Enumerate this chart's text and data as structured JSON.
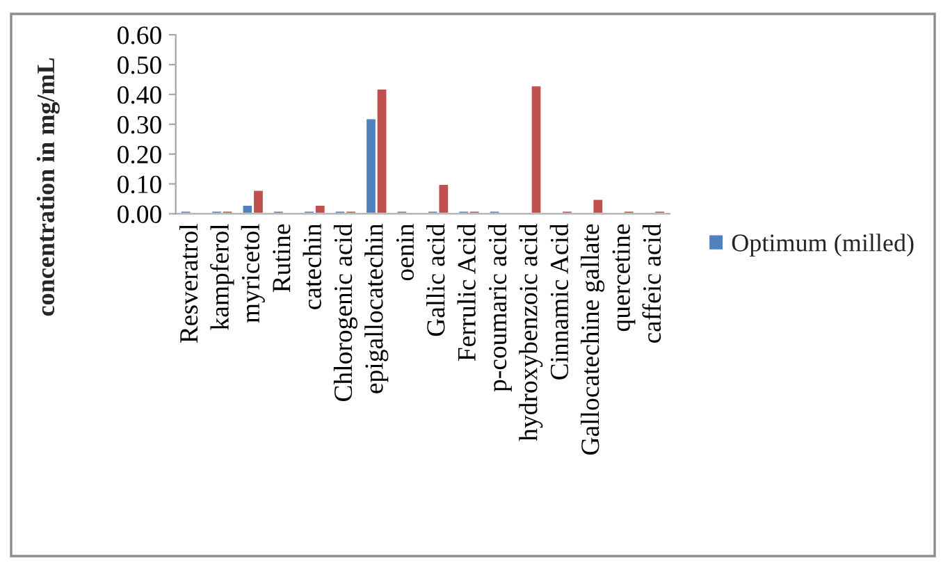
{
  "chart_data": {
    "type": "bar",
    "ylabel": "concentration in mg/mL",
    "categories": [
      "Resveratrol",
      "kampferol",
      "myricetol",
      "Rutine",
      "catechin",
      "Chlorogenic acid",
      "epigallocatechin",
      "oenin",
      "Gallic acid",
      "Ferrulic Acid",
      "p-coumaric acid",
      "hydroxybenzoic acid",
      "Cinnamic Acid",
      "Gallocatechine gallate",
      "quercetine",
      "caffeic acid"
    ],
    "series": [
      {
        "name": "Optimum (milled)",
        "color": "#4f81bd",
        "values": [
          0.01,
          0.01,
          0.03,
          0.01,
          0.01,
          0.01,
          0.32,
          0.01,
          0.01,
          0.01,
          0.01,
          null,
          null,
          null,
          null,
          null
        ]
      },
      {
        "color": "#c0504d",
        "values": [
          null,
          0.01,
          0.08,
          null,
          0.03,
          0.01,
          0.42,
          null,
          0.1,
          0.01,
          null,
          0.43,
          0.01,
          0.05,
          0.01,
          0.01
        ]
      }
    ],
    "ylim": [
      0,
      0.6
    ],
    "yticks": [
      {
        "value": 0,
        "label": "0.00"
      },
      {
        "value": 0.1,
        "label": "0.10"
      },
      {
        "value": 0.2,
        "label": "0.20"
      },
      {
        "value": 0.3,
        "label": "0.30"
      },
      {
        "value": 0.4,
        "label": "0.40"
      },
      {
        "value": 0.5,
        "label": "0.50"
      },
      {
        "value": 0.6,
        "label": "0.60"
      }
    ],
    "legend": "right"
  }
}
